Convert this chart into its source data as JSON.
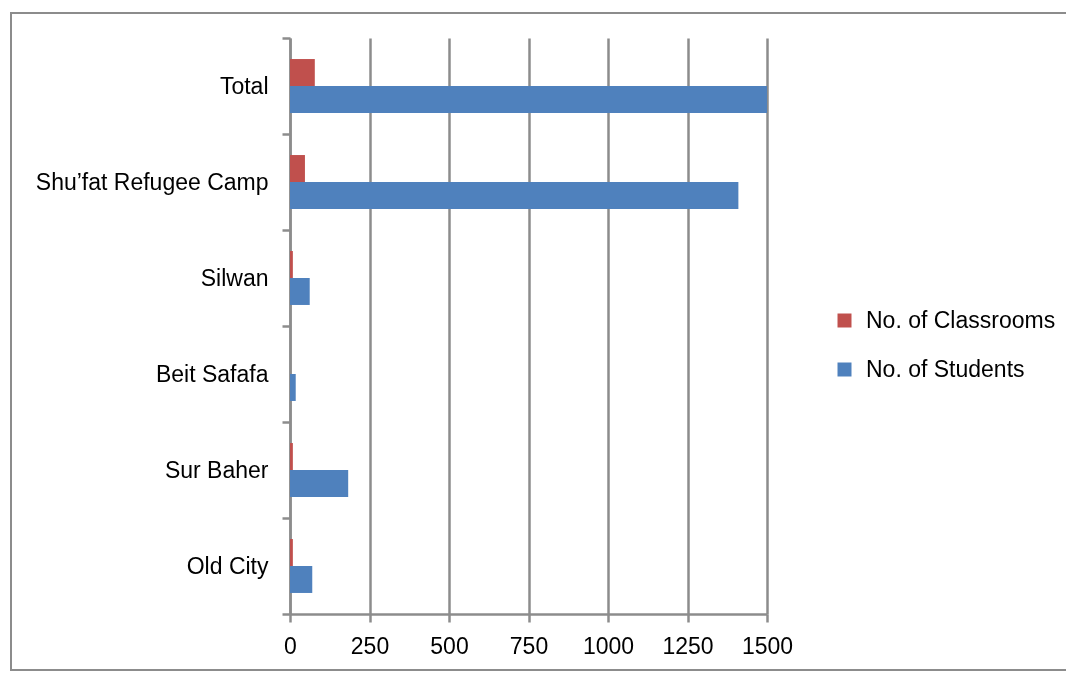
{
  "chart_data": {
    "type": "bar",
    "orientation": "horizontal",
    "categories": [
      "Total",
      "Shu’fat Refugee Camp",
      "Silwan",
      "Beit Safafa",
      "Sur Baher",
      "Old City"
    ],
    "series": [
      {
        "name": "No. of Classrooms",
        "color": "#c0504d",
        "values": [
          78,
          47,
          9,
          null,
          9,
          9
        ]
      },
      {
        "name": "No. of Students",
        "color": "#4f81bd",
        "values": [
          1500,
          1410,
          62,
          18,
          183,
          70
        ]
      }
    ],
    "xlim": [
      0,
      1500
    ],
    "xticks": [
      0,
      250,
      500,
      750,
      1000,
      1250,
      1500
    ],
    "grid": "x",
    "legend": "right"
  }
}
